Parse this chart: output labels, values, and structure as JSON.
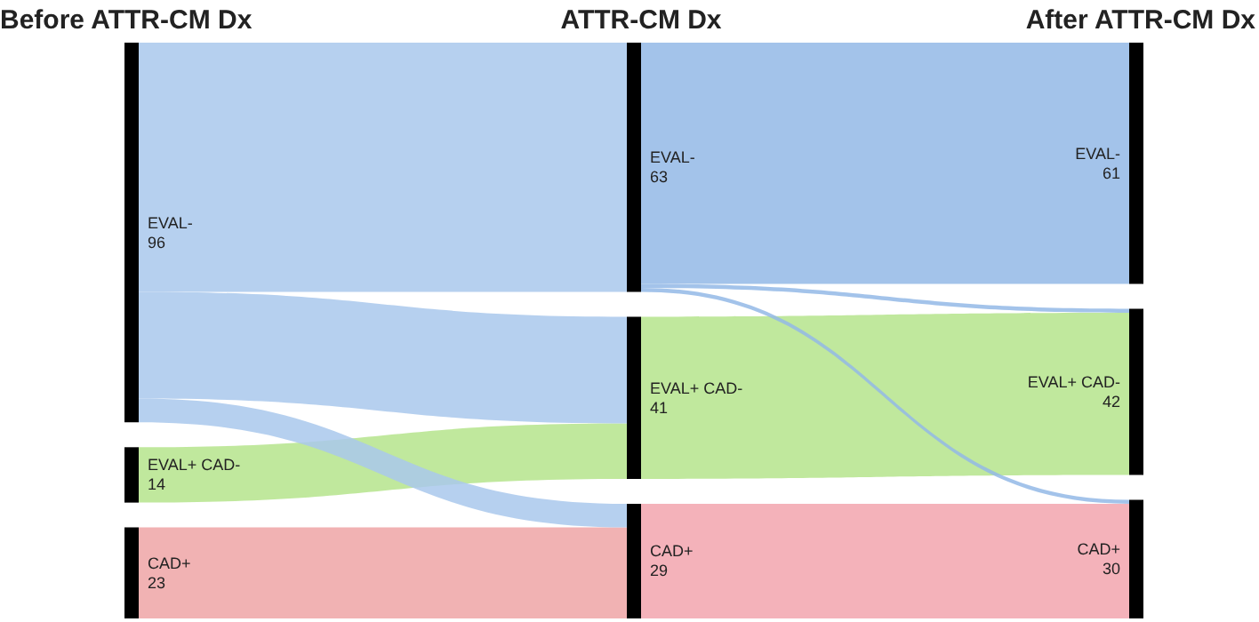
{
  "chart_data": {
    "type": "other",
    "categories": [
      "EVAL-",
      "EVAL+ CAD-",
      "CAD+"
    ],
    "data_labels": true,
    "series": [
      {
        "name": "Before ATTR-CM Dx",
        "values": [
          96,
          14,
          23
        ],
        "colors": [
          "#a9c8ec",
          "#b5e48c",
          "#eea4a6"
        ]
      },
      {
        "name": "ATTR-CM Dx",
        "values": [
          63,
          41,
          29
        ],
        "colors": [
          "#93b8e6",
          "#b5e48c",
          "#f2a4ae"
        ]
      },
      {
        "name": "After ATTR-CM Dx",
        "values": [
          61,
          42,
          30
        ],
        "colors": [
          "#93b8e6",
          "#b5e48c",
          "#f2a4ae"
        ]
      }
    ]
  }
}
